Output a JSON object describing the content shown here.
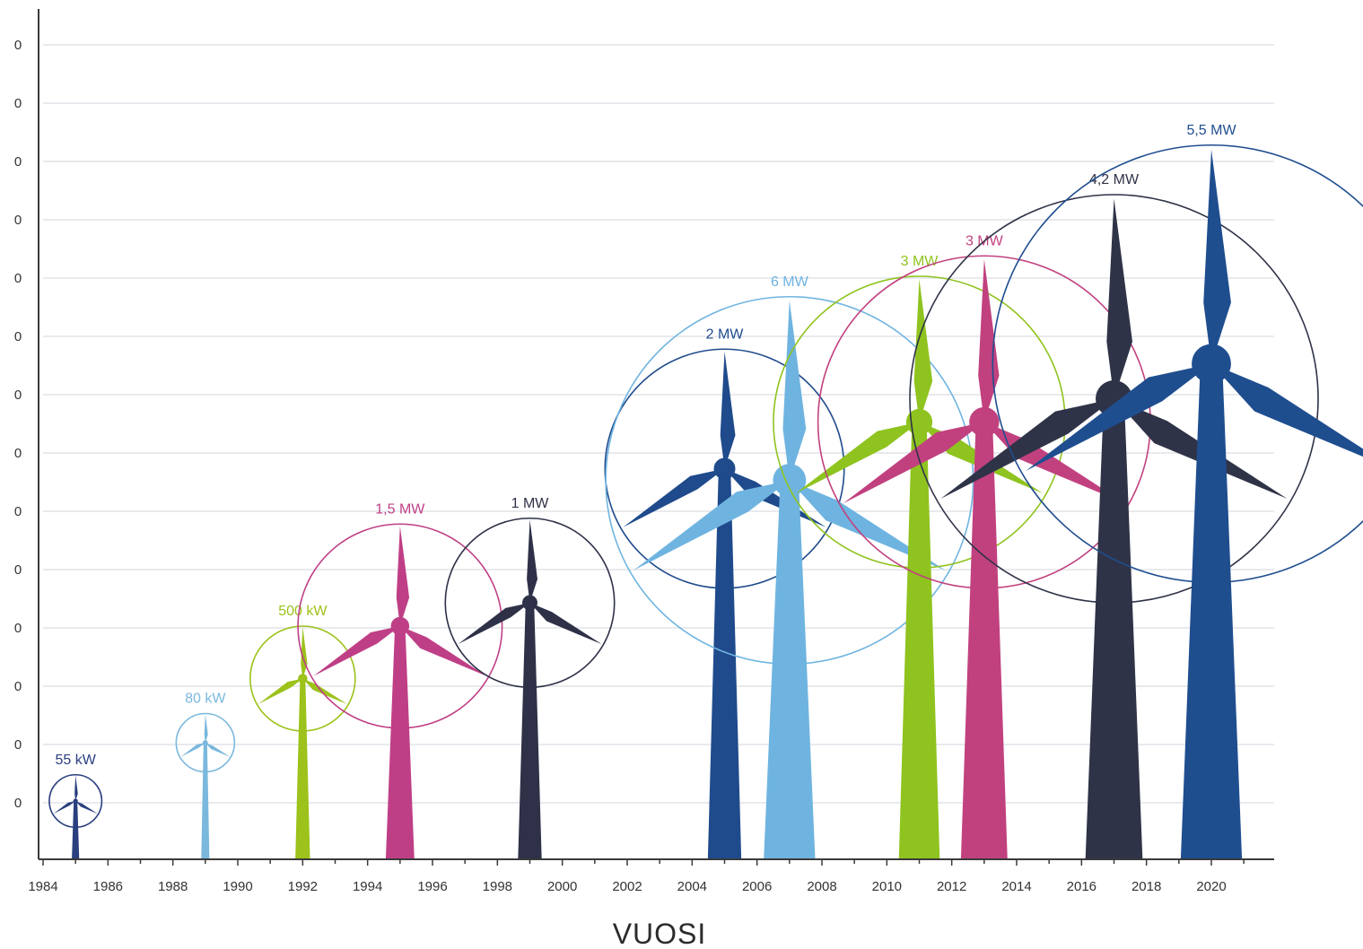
{
  "chart_data": {
    "type": "scatter",
    "title": "",
    "xlabel": "VUOSI",
    "ylabel": "",
    "xlim": [
      1984,
      2021
    ],
    "x_ticks": [
      "1984",
      "1986",
      "1988",
      "1990",
      "1992",
      "1994",
      "1996",
      "1998",
      "2000",
      "2002",
      "2004",
      "2006",
      "2008",
      "2010",
      "2012",
      "2014",
      "2016",
      "2018",
      "2020"
    ],
    "y_tick_labels": [
      "0",
      "0",
      "0",
      "0",
      "0",
      "0",
      "0",
      "0",
      "0",
      "0",
      "0",
      "0",
      "0",
      "0",
      "0"
    ],
    "grid": true,
    "series": [
      {
        "year": 1985,
        "label": "55 kW",
        "color": "#2a3f7e",
        "hub": 1,
        "radius": 0.45,
        "angle": -90
      },
      {
        "year": 1989,
        "label": "80 kW",
        "color": "#7ab8dd",
        "hub": 2,
        "radius": 0.5,
        "angle": -90
      },
      {
        "year": 1992,
        "label": "500 kW",
        "color": "#9cc21b",
        "hub": 3.1,
        "radius": 0.9,
        "angle": -90
      },
      {
        "year": 1995,
        "label": "1,5 MW",
        "color": "#bf3f86",
        "hub": 4,
        "radius": 1.75,
        "angle": -90
      },
      {
        "year": 1999,
        "label": "1 MW",
        "color": "#2e3147",
        "hub": 4.4,
        "radius": 1.45,
        "angle": -90
      },
      {
        "year": 2005,
        "label": "2 MW",
        "color": "#1f4b8c",
        "hub": 6.7,
        "radius": 2.05,
        "angle": -90
      },
      {
        "year": 2007,
        "label": "6 MW",
        "color": "#6fb4e0",
        "hub": 6.5,
        "radius": 3.15,
        "angle": -90
      },
      {
        "year": 2011,
        "label": "3 MW",
        "color": "#8fc31f",
        "hub": 7.5,
        "radius": 2.5,
        "angle": -90
      },
      {
        "year": 2013,
        "label": "3 MW",
        "color": "#c1417f",
        "hub": 7.5,
        "radius": 2.85,
        "angle": -90
      },
      {
        "year": 2017,
        "label": "4,2 MW",
        "color": "#2f3347",
        "hub": 7.9,
        "radius": 3.5,
        "angle": -90
      },
      {
        "year": 2020,
        "label": "5,5 MW",
        "color": "#1f4e8f",
        "hub": 8.5,
        "radius": 3.75,
        "angle": -90
      }
    ]
  }
}
